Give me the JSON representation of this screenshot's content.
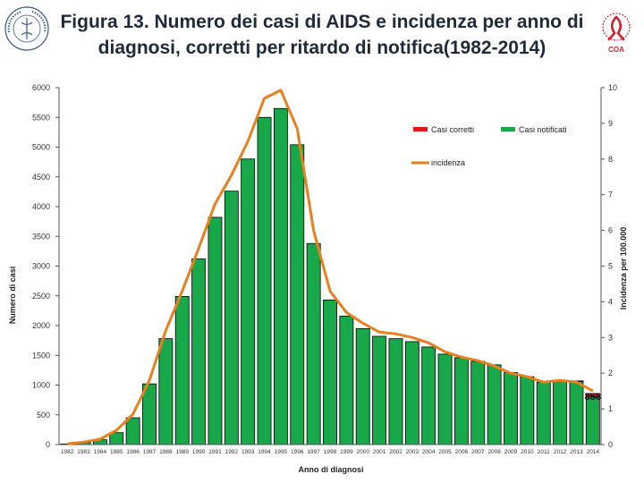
{
  "title": "Figura 13. Numero dei casi di AIDS e incidenza per anno di diagnosi, corretti per ritardo di notifica(1982-2014)",
  "logos": {
    "left": "Istituto Superiore di Sanità",
    "right_top": "Centro Operativo AIDS",
    "right_bottom": "COA"
  },
  "colors": {
    "bar_notified": "#18a84a",
    "bar_corrected": "#e8141c",
    "line": "#e8801e",
    "title": "#1f2a3d"
  },
  "chart_data": {
    "type": "bar",
    "title": "",
    "categories": [
      "1982",
      "1983",
      "1984",
      "1985",
      "1986",
      "1987",
      "1988",
      "1989",
      "1990",
      "1991",
      "1992",
      "1993",
      "1994",
      "1995",
      "1996",
      "1997",
      "1998",
      "1999",
      "2000",
      "2001",
      "2002",
      "2003",
      "2004",
      "2005",
      "2006",
      "2007",
      "2008",
      "2009",
      "2010",
      "2011",
      "2012",
      "2013",
      "2014"
    ],
    "series": [
      {
        "name": "Casi notificati",
        "kind": "bar",
        "axis": "left",
        "values": [
          10,
          40,
          80,
          200,
          450,
          1020,
          1780,
          2490,
          3120,
          3820,
          4260,
          4800,
          5500,
          5650,
          5040,
          3380,
          2430,
          2160,
          1950,
          1820,
          1780,
          1730,
          1640,
          1520,
          1460,
          1400,
          1340,
          1210,
          1140,
          1050,
          1080,
          1060,
          800
        ]
      },
      {
        "name": "Casi corretti",
        "kind": "bar",
        "axis": "left",
        "values": [
          0,
          0,
          0,
          0,
          0,
          0,
          0,
          0,
          0,
          0,
          0,
          0,
          0,
          0,
          0,
          0,
          0,
          0,
          0,
          0,
          0,
          0,
          0,
          0,
          0,
          0,
          0,
          0,
          0,
          0,
          0,
          10,
          58
        ]
      },
      {
        "name": "incidenza",
        "kind": "line",
        "axis": "right",
        "values": [
          0.02,
          0.07,
          0.15,
          0.4,
          0.85,
          1.8,
          3.2,
          4.3,
          5.5,
          6.75,
          7.55,
          8.5,
          9.7,
          9.93,
          8.85,
          6.0,
          4.3,
          3.7,
          3.4,
          3.15,
          3.1,
          3.0,
          2.85,
          2.6,
          2.45,
          2.35,
          2.2,
          2.0,
          1.9,
          1.75,
          1.8,
          1.75,
          1.5
        ]
      }
    ],
    "xlabel": "Anno di diagnosi",
    "ylabel": "Numero di casi",
    "y2label": "Incidenza per 100.000",
    "ylim": [
      0,
      6000
    ],
    "y2lim": [
      0,
      10
    ],
    "yticks": [
      "0",
      "500",
      "1000",
      "1500",
      "2000",
      "2500",
      "3000",
      "3500",
      "4000",
      "4500",
      "5000",
      "5500",
      "6000"
    ],
    "y2ticks": [
      "0",
      "1",
      "2",
      "3",
      "4",
      "5",
      "6",
      "7",
      "8",
      "9",
      "10"
    ],
    "legend": [
      "Casi corretti",
      "Casi notificati",
      "incidenza"
    ],
    "legend_position": "top-right",
    "annotation": {
      "category": "2014",
      "text": "858"
    },
    "grid": false
  }
}
